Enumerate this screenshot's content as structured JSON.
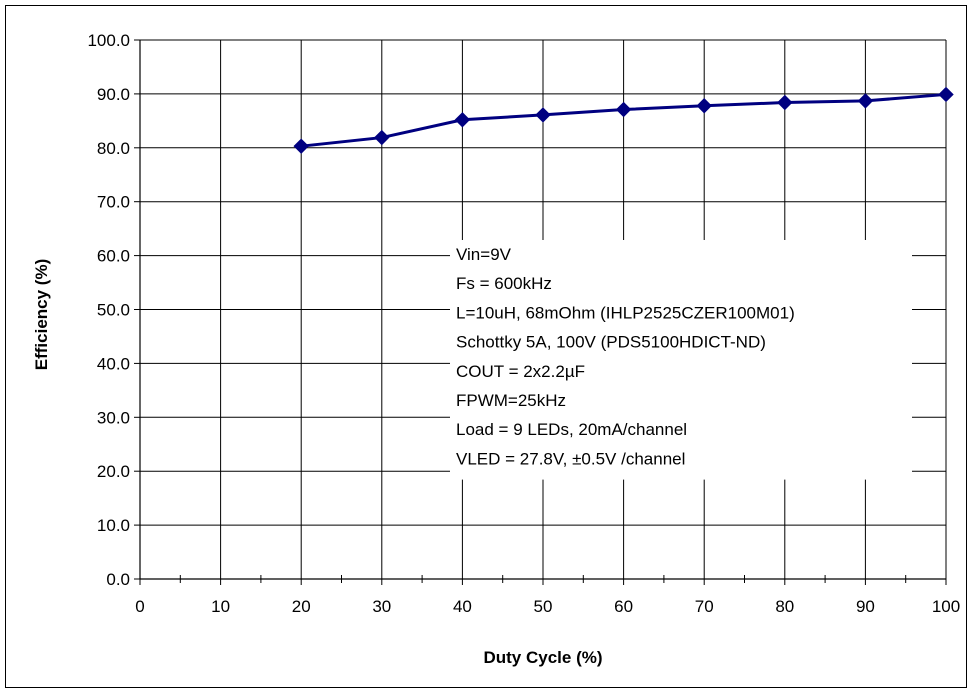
{
  "chart_data": {
    "type": "line",
    "xlabel": "Duty Cycle (%)",
    "ylabel": "Efficiency (%)",
    "xlim": [
      0,
      100
    ],
    "ylim": [
      0,
      100
    ],
    "x_ticks": [
      0,
      10,
      20,
      30,
      40,
      50,
      60,
      70,
      80,
      90,
      100
    ],
    "x_tick_labels": [
      "0",
      "10",
      "20",
      "30",
      "40",
      "50",
      "60",
      "70",
      "80",
      "90",
      "100"
    ],
    "y_ticks": [
      0,
      10,
      20,
      30,
      40,
      50,
      60,
      70,
      80,
      90,
      100
    ],
    "y_tick_labels": [
      "0.0",
      "10.0",
      "20.0",
      "30.0",
      "40.0",
      "50.0",
      "60.0",
      "70.0",
      "80.0",
      "90.0",
      "100.0"
    ],
    "grid": "major gridlines on both axes",
    "legend": "none",
    "series": [
      {
        "x": [
          20,
          30,
          40,
          50,
          60,
          70,
          80,
          90,
          100
        ],
        "y": [
          80.3,
          81.9,
          85.2,
          86.1,
          87.1,
          87.8,
          88.4,
          88.7,
          89.9
        ],
        "marker": "diamond",
        "color": "#000080"
      }
    ],
    "annotation_lines": [
      "Vin=9V",
      "Fs = 600kHz",
      "L=10uH, 68mOhm (IHLP2525CZER100M01)",
      "Schottky 5A, 100V (PDS5100HDICT-ND)",
      "COUT = 2x2.2µF",
      "FPWM=25kHz",
      "Load = 9 LEDs, 20mA/channel",
      "VLED = 27.8V, ±0.5V /channel"
    ]
  }
}
